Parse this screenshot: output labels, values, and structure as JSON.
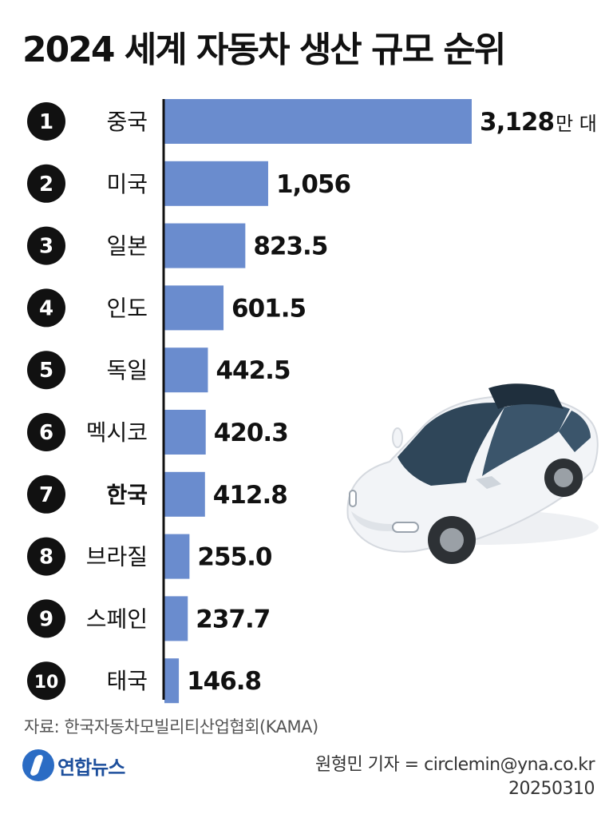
{
  "title": "2024 세계 자동차 생산 규모 순위",
  "colors": {
    "bar": "#6a8cce",
    "axis": "#111111",
    "rank_circle": "#111111"
  },
  "chart_data": {
    "type": "bar",
    "orientation": "horizontal",
    "title": "2024 세계 자동차 생산 규모 순위",
    "unit": "만 대",
    "categories": [
      "중국",
      "미국",
      "일본",
      "인도",
      "독일",
      "멕시코",
      "한국",
      "브라질",
      "스페인",
      "태국"
    ],
    "ranks": [
      "1",
      "2",
      "3",
      "4",
      "5",
      "6",
      "7",
      "8",
      "9",
      "10"
    ],
    "values": [
      3128,
      1056,
      823.5,
      601.5,
      442.5,
      420.3,
      412.8,
      255.0,
      237.7,
      146.8
    ],
    "value_labels": [
      "3,128",
      "1,056",
      "823.5",
      "601.5",
      "442.5",
      "420.3",
      "412.8",
      "255.0",
      "237.7",
      "146.8"
    ],
    "highlight": "한국",
    "grid": false
  },
  "source": "자료: 한국자동차모빌리티산업협회(KAMA)",
  "logo_text": "연합뉴스",
  "reporter": "원형민 기자 = circlemin@yna.co.kr",
  "date": "20250310",
  "illustration": "car-illustration"
}
